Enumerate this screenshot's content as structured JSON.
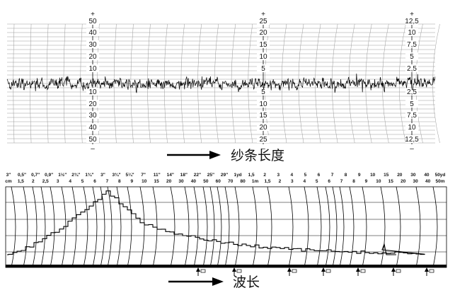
{
  "upper": {
    "col1": {
      "top": [
        "50",
        "40",
        "30",
        "20",
        "10"
      ],
      "bottom": [
        "10",
        "20",
        "30",
        "40",
        "50"
      ]
    },
    "col2": {
      "top": [
        "25",
        "20",
        "15",
        "10",
        "5"
      ],
      "bottom": [
        "5",
        "10",
        "15",
        "20",
        "25"
      ]
    },
    "col3": {
      "top": [
        "12,5",
        "10",
        "7,5",
        "5",
        "2,5"
      ],
      "bottom": [
        "2,5",
        "5",
        "7,5",
        "10",
        "12,5"
      ]
    },
    "caption": "纱条长度"
  },
  "lower": {
    "scale_top": [
      "3\"",
      "0,5\"",
      "0,7\"",
      "0,9\"",
      "1½\"",
      "2¾\"",
      "1¾\"",
      "3\"",
      "3¾\"",
      "5¼\"",
      "7\"",
      "11\"",
      "14\"",
      "18\"",
      "22\"",
      "25\"",
      "29\"",
      "1yd",
      "1,5",
      "2",
      "3",
      "4",
      "5",
      "6",
      "7",
      "8",
      "9",
      "10",
      "15",
      "20",
      "30",
      "40",
      "50yd"
    ],
    "scale_bottom": [
      "cm",
      "1,5",
      "2",
      "2,5",
      "3",
      "4",
      "5",
      "6",
      "7",
      "8",
      "9",
      "10",
      "15",
      "20",
      "30",
      "40",
      "50",
      "60",
      "70",
      "80",
      "1m",
      "1,5",
      "2",
      "3",
      "4",
      "5",
      "6",
      "7",
      "8",
      "9",
      "10",
      "15",
      "20",
      "30",
      "40",
      "50m"
    ],
    "caption": "波长"
  }
}
